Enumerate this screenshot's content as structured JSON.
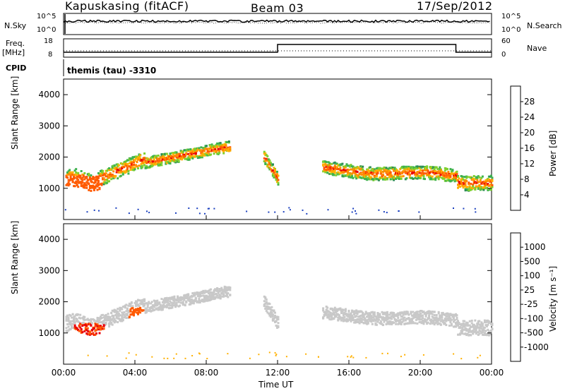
{
  "header": {
    "station": "Kapuskasing (fitACF)",
    "beam": "Beam 03",
    "date": "17/Sep/2012"
  },
  "noise_panel": {
    "left_label": "N.Sky",
    "right_label": "N.Search",
    "left_ticks": [
      "10^5",
      "10^0"
    ],
    "right_ticks": [
      "10^5",
      "10^0"
    ]
  },
  "freq_panel": {
    "left_label_1": "Freq.",
    "left_label_2": "[MHz]",
    "right_label": "Nave",
    "left_ticks": [
      "18",
      "8"
    ],
    "right_ticks": [
      "60",
      "0"
    ]
  },
  "cpid_panel": {
    "label": "CPID",
    "program": "themis (tau) -3310"
  },
  "power_colorbar": {
    "title": "Power [dB]",
    "ticks": [
      "28",
      "24",
      "20",
      "16",
      "12",
      "8",
      "4"
    ],
    "colors": [
      "#e8000b",
      "#ff5a00",
      "#ff8c00",
      "#ffb000",
      "#7ecf2e",
      "#3fb24f",
      "#2e8b57",
      "#1f6f9f",
      "#1a3fbf",
      "#0b18d0"
    ]
  },
  "velocity_colorbar": {
    "title": "Velocity [m s⁻¹]",
    "ticks": [
      "1000",
      "500",
      "100",
      "25",
      "-25",
      "-100",
      "-500",
      "-1000"
    ],
    "colors": [
      "#1a3fbf",
      "#2e6fa8",
      "#3fa06a",
      "#6fcf3a",
      "#c8c8c8",
      "#ffb000",
      "#ff8c00",
      "#ff5a00",
      "#e8000b"
    ]
  },
  "chart_data": [
    {
      "type": "heatmap",
      "title": "Power",
      "ylabel": "Slant Range [km]",
      "xlabel": "Time UT",
      "x_ticks": [
        "00:00",
        "04:00",
        "08:00",
        "12:00",
        "16:00",
        "20:00",
        "00:00"
      ],
      "y_ticks": [
        "1000",
        "2000",
        "3000",
        "4000"
      ],
      "ylim": [
        0,
        4500
      ],
      "xlim_hours": [
        0,
        24
      ]
    },
    {
      "type": "heatmap",
      "title": "Velocity",
      "ylabel": "Slant Range [km]",
      "xlabel": "Time UT",
      "x_ticks": [
        "00:00",
        "04:00",
        "08:00",
        "12:00",
        "16:00",
        "20:00",
        "00:00"
      ],
      "y_ticks": [
        "1000",
        "2000",
        "3000",
        "4000"
      ],
      "ylim": [
        0,
        4500
      ],
      "xlim_hours": [
        0,
        24
      ]
    }
  ],
  "x_axis": {
    "title": "Time UT",
    "ticks": [
      "00:00",
      "04:00",
      "08:00",
      "12:00",
      "16:00",
      "20:00",
      "00:00"
    ]
  },
  "y_axis": {
    "title": "Slant Range [km]",
    "ticks": [
      "1000",
      "2000",
      "3000",
      "4000"
    ]
  }
}
